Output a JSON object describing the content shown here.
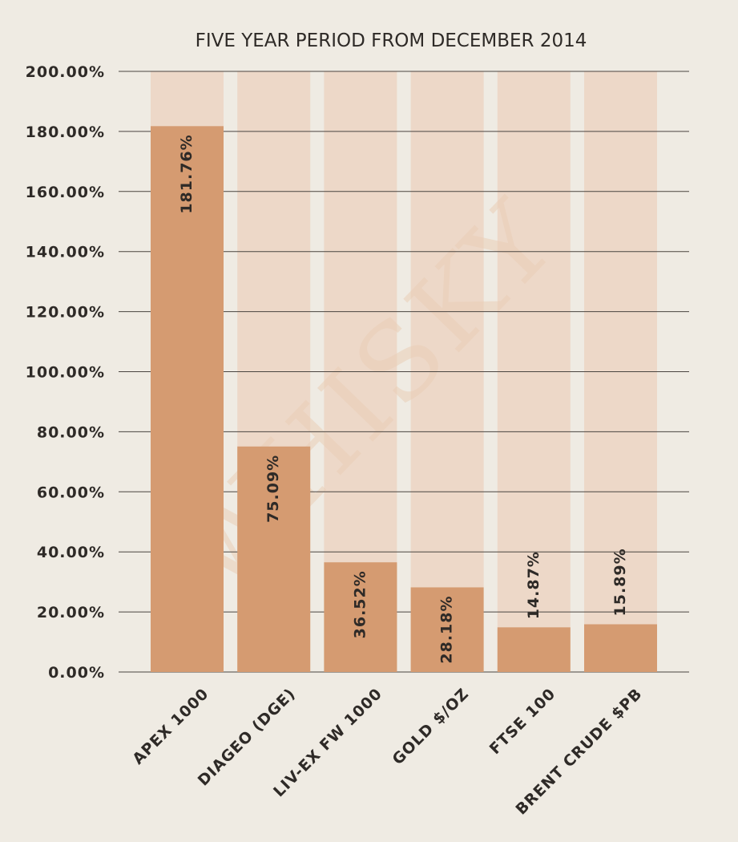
{
  "watermark": {
    "text": "WHISKY"
  },
  "chart_data": {
    "type": "bar",
    "title": "FIVE YEAR PERIOD FROM DECEMBER 2014",
    "categories": [
      "APEX 1000",
      "DIAGEO (DGE)",
      "LIV-EX FW 1000",
      "GOLD $/OZ",
      "FTSE 100",
      "BRENT CRUDE $PB"
    ],
    "values": [
      181.76,
      75.09,
      36.52,
      28.18,
      14.87,
      15.89
    ],
    "data_labels": [
      "181.76%",
      "75.09%",
      "36.52%",
      "28.18%",
      "14.87%",
      "15.89%"
    ],
    "ylim": [
      0,
      200
    ],
    "yticks": [
      0,
      20,
      40,
      60,
      80,
      100,
      120,
      140,
      160,
      180,
      200
    ],
    "ytick_labels": [
      "0.00%",
      "20.00%",
      "40.00%",
      "60.00%",
      "80.00%",
      "100.00%",
      "120.00%",
      "140.00%",
      "160.00%",
      "180.00%",
      "200.00%"
    ],
    "xlabel": "",
    "ylabel": "",
    "grid": true,
    "legend": "none",
    "colors": {
      "background": "#efebe3",
      "bar": "#d59b71",
      "bar_track": "#ecd5c3",
      "gridline": "#4a4540",
      "text": "#2e2a27",
      "watermark": "#e9cdb7"
    }
  }
}
